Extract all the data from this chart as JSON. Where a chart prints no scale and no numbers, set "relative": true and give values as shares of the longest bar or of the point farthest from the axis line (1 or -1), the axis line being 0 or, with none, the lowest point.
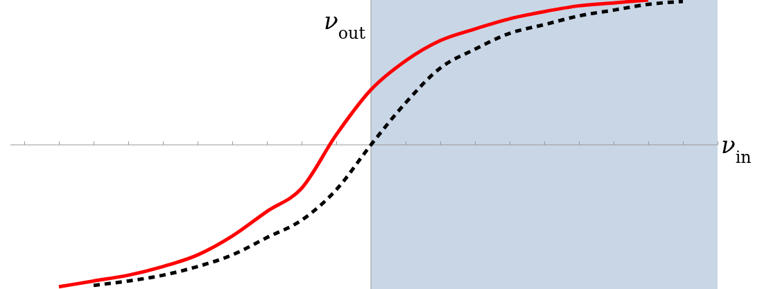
{
  "chart_data": {
    "type": "line",
    "relative": true,
    "xlabel": "ν$_{in}$",
    "ylabel": "ν$_{out}$",
    "categories": [
      null,
      null,
      null,
      null,
      null,
      null,
      null,
      null,
      null,
      null,
      null,
      null,
      null,
      null,
      null,
      null,
      null,
      null,
      null,
      null,
      null
    ],
    "series": [
      {
        "color": "#ff0000",
        "line_style": "solid",
        "values": [
          null,
          -0.98,
          -0.94,
          -0.9,
          -0.84,
          -0.76,
          -0.63,
          -0.46,
          -0.3,
          0.07,
          0.38,
          0.58,
          0.72,
          0.8,
          0.87,
          0.92,
          0.96,
          0.98,
          1.0,
          null,
          null
        ]
      },
      {
        "color": "#000000",
        "line_style": "dashed",
        "values": [
          null,
          null,
          -0.97,
          -0.94,
          -0.9,
          -0.84,
          -0.76,
          -0.64,
          -0.52,
          -0.31,
          0,
          0.29,
          0.53,
          0.66,
          0.77,
          0.83,
          0.89,
          0.93,
          0.97,
          0.99,
          null
        ]
      }
    ],
    "grid": false
  }
}
